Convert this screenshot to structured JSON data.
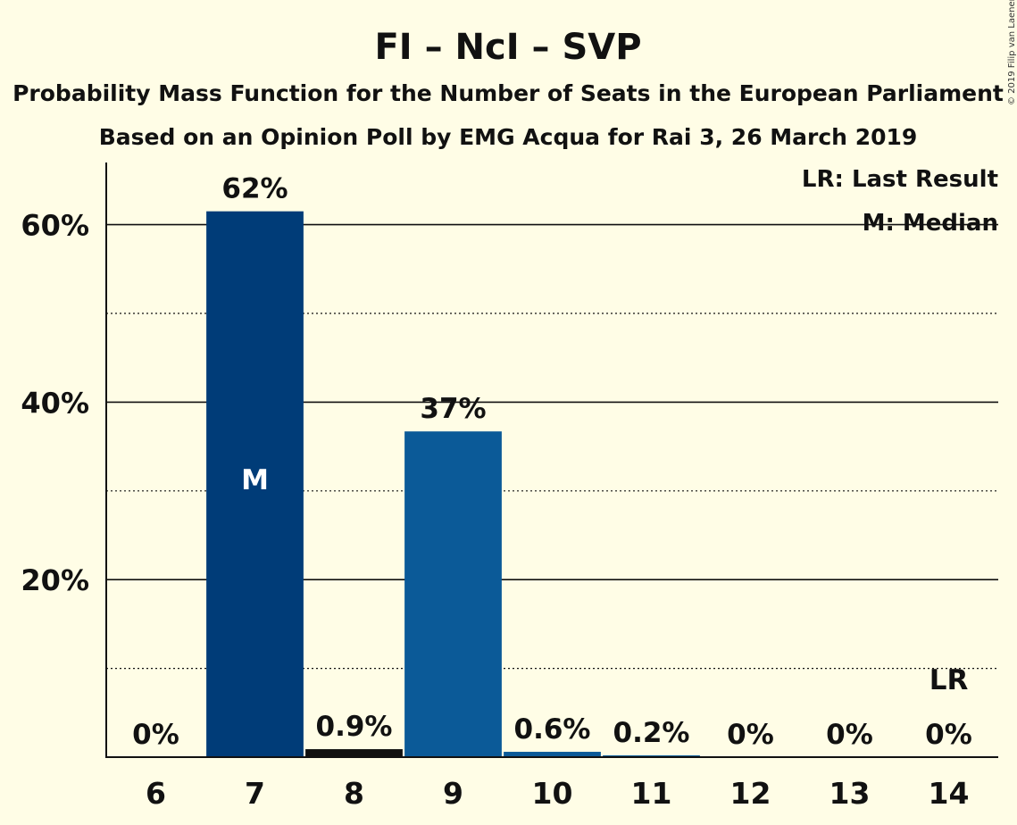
{
  "chart_data": {
    "type": "bar",
    "title": "FI – NcI – SVP",
    "subtitle": "Probability Mass Function for the Number of Seats in the European Parliament",
    "subtitle2": "Based on an Opinion Poll by EMG Acqua for Rai 3, 26 March 2019",
    "copyright": "© 2019 Filip van Laenen",
    "categories": [
      "6",
      "7",
      "8",
      "9",
      "10",
      "11",
      "12",
      "13",
      "14"
    ],
    "values": [
      0,
      61.5,
      0.9,
      36.7,
      0.6,
      0.2,
      0,
      0,
      0
    ],
    "data_labels": [
      "0%",
      "62%",
      "0.9%",
      "37%",
      "0.6%",
      "0.2%",
      "0%",
      "0%",
      "0%"
    ],
    "bar_colors": [
      "#0B5A98",
      "#003C78",
      "#111111",
      "#0B5A98",
      "#0B5A98",
      "#0B5A98",
      "#0B5A98",
      "#0B5A98",
      "#0B5A98"
    ],
    "yticks": [
      20,
      40,
      60
    ],
    "ytick_labels": [
      "20%",
      "40%",
      "60%"
    ],
    "minor_grid": [
      10,
      30,
      50
    ],
    "ylim": [
      0,
      67
    ],
    "median_category": "7",
    "median_label": "M",
    "last_result_category": "14",
    "last_result_label": "LR",
    "legend": [
      "LR: Last Result",
      "M: Median"
    ],
    "legend_position": "top-right",
    "grid": true
  }
}
